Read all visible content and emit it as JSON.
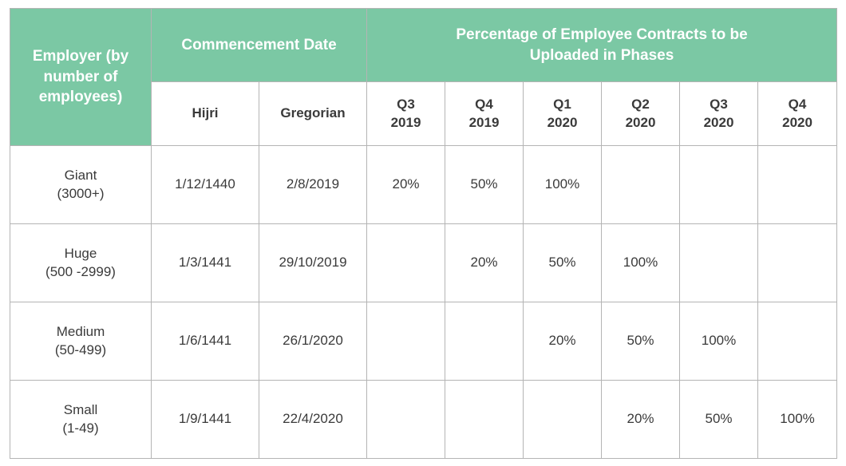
{
  "colors": {
    "header_green": "#7bc8a4",
    "border": "#b4b4b4",
    "text": "#3a3a3a"
  },
  "headers": {
    "employer": "Employer (by number of employees)",
    "commencement": "Commencement Date",
    "percentage": "Percentage of Employee Contracts to be Uploaded in Phases",
    "hijri": "Hijri",
    "gregorian": "Gregorian",
    "quarters": [
      {
        "q": "Q3",
        "year": "2019"
      },
      {
        "q": "Q4",
        "year": "2019"
      },
      {
        "q": "Q1",
        "year": "2020"
      },
      {
        "q": "Q2",
        "year": "2020"
      },
      {
        "q": "Q3",
        "year": "2020"
      },
      {
        "q": "Q4",
        "year": "2020"
      }
    ]
  },
  "rows": [
    {
      "name": "Giant",
      "range": "(3000+)",
      "hijri": "1/12/1440",
      "gregorian": "2/8/2019",
      "phases": [
        "20%",
        "50%",
        "100%",
        "",
        "",
        ""
      ]
    },
    {
      "name": "Huge",
      "range": "(500 -2999)",
      "hijri": "1/3/1441",
      "gregorian": "29/10/2019",
      "phases": [
        "",
        "20%",
        "50%",
        "100%",
        "",
        ""
      ]
    },
    {
      "name": "Medium",
      "range": "(50-499)",
      "hijri": "1/6/1441",
      "gregorian": "26/1/2020",
      "phases": [
        "",
        "",
        "20%",
        "50%",
        "100%",
        ""
      ]
    },
    {
      "name": "Small",
      "range": "(1-49)",
      "hijri": "1/9/1441",
      "gregorian": "22/4/2020",
      "phases": [
        "",
        "",
        "",
        "20%",
        "50%",
        "100%"
      ]
    }
  ]
}
